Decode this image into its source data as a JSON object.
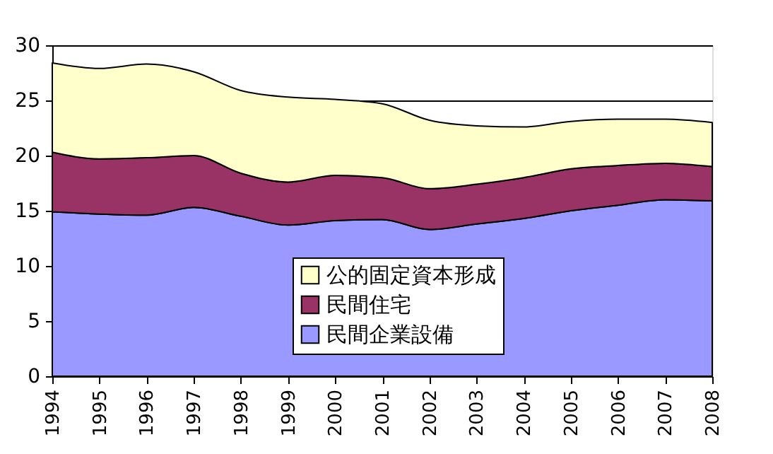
{
  "chart_data": {
    "type": "area",
    "stacked": true,
    "categories": [
      "1994",
      "1995",
      "1996",
      "1997",
      "1998",
      "1999",
      "2000",
      "2001",
      "2002",
      "2003",
      "2004",
      "2005",
      "2006",
      "2007",
      "2008"
    ],
    "series": [
      {
        "name": "民間企業設備",
        "color": "#9999ff",
        "values": [
          14.9,
          14.7,
          14.6,
          15.3,
          14.5,
          13.7,
          14.1,
          14.2,
          13.3,
          13.8,
          14.3,
          15.0,
          15.5,
          16.0,
          15.9
        ]
      },
      {
        "name": "民間住宅",
        "color": "#993366",
        "values": [
          5.4,
          5.0,
          5.2,
          4.7,
          3.9,
          3.9,
          4.1,
          3.8,
          3.7,
          3.6,
          3.7,
          3.8,
          3.6,
          3.3,
          3.1
        ]
      },
      {
        "name": "公的固定資本形成",
        "color": "#ffffcc",
        "values": [
          8.1,
          8.2,
          8.5,
          7.6,
          7.5,
          7.7,
          6.9,
          6.7,
          6.2,
          5.3,
          4.6,
          4.3,
          4.2,
          4.0,
          4.0
        ]
      }
    ],
    "ylim": [
      0,
      30
    ],
    "yticks": [
      0,
      5,
      10,
      15,
      20,
      25,
      30
    ],
    "grid": "y",
    "legend": "bottom"
  }
}
